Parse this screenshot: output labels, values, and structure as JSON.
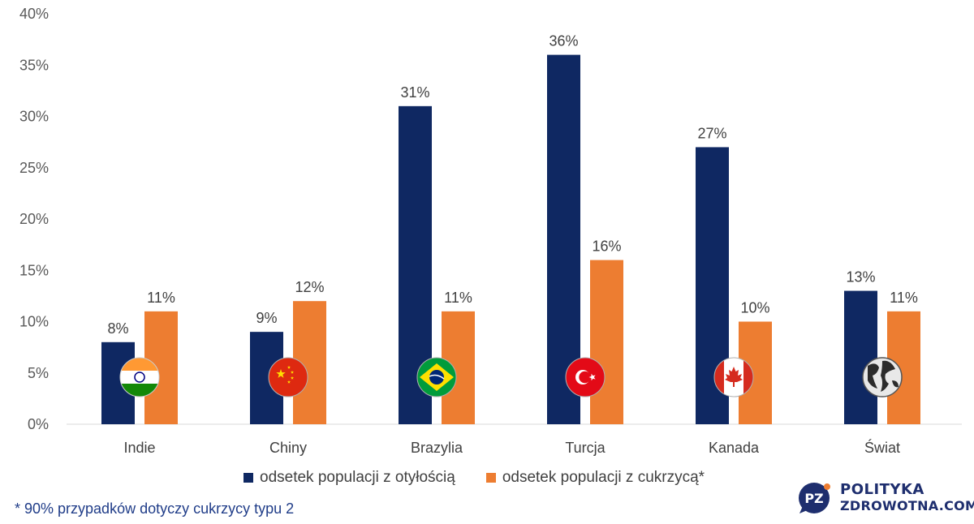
{
  "chart_data": {
    "type": "bar",
    "categories": [
      "Indie",
      "Chiny",
      "Brazylia",
      "Turcja",
      "Kanada",
      "Świat"
    ],
    "series": [
      {
        "name": "odsetek populacji z otyłością",
        "values": [
          8,
          9,
          31,
          36,
          27,
          13
        ],
        "color": "#0f2862"
      },
      {
        "name": "odsetek populacji z cukrzycą*",
        "values": [
          11,
          12,
          11,
          16,
          10,
          11
        ],
        "color": "#ed7d31"
      }
    ],
    "data_labels": [
      [
        "8%",
        "9%",
        "31%",
        "36%",
        "27%",
        "13%"
      ],
      [
        "11%",
        "12%",
        "11%",
        "16%",
        "10%",
        "11%"
      ]
    ],
    "y_ticks": [
      "0%",
      "5%",
      "10%",
      "15%",
      "20%",
      "25%",
      "30%",
      "35%",
      "40%"
    ],
    "ylim": [
      0,
      40
    ],
    "grid": false,
    "legend_position": "bottom",
    "flag_icons": [
      "india-flag-icon",
      "china-flag-icon",
      "brazil-flag-icon",
      "turkey-flag-icon",
      "canada-flag-icon",
      "globe-icon"
    ]
  },
  "footnote": "* 90% przypadków dotyczy cukrzycy typu 2",
  "brand": {
    "badge": "PZ",
    "line1": "POLITYKA",
    "line2": "ZDROWOTNA.COM"
  }
}
